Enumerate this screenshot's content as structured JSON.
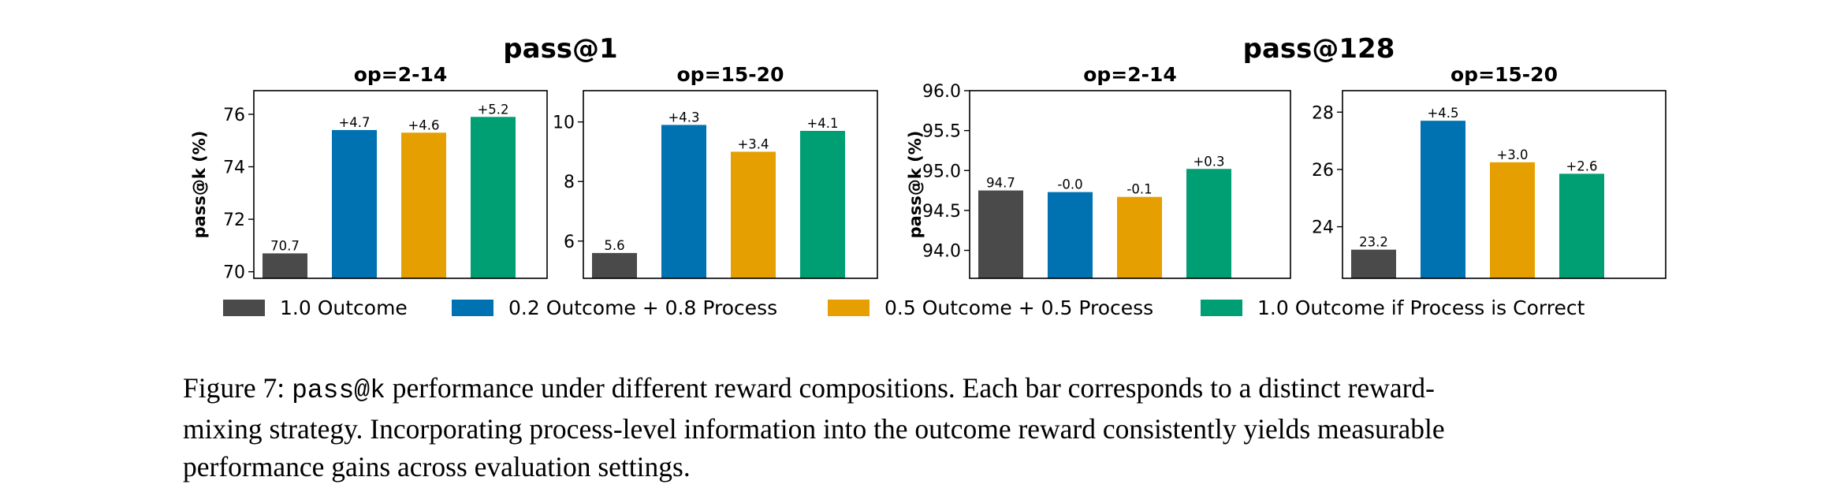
{
  "chart_data": {
    "type": "bar",
    "groups": [
      {
        "title": "pass@1",
        "panels": [
          0,
          1
        ]
      },
      {
        "title": "pass@128",
        "panels": [
          2,
          3
        ]
      }
    ],
    "categories": [
      "1.0 Outcome",
      "0.2 Outcome + 0.8 Process",
      "0.5 Outcome + 0.5 Process",
      "1.0 Outcome if Process is Correct"
    ],
    "colors": [
      "#4a4a4a",
      "#0072b2",
      "#e69f00",
      "#009e73"
    ],
    "panels": [
      {
        "title": "op=2-14",
        "group": "pass@1",
        "ylabel": "pass@k (%)",
        "ylim": [
          69.75,
          76.9
        ],
        "yticks": [
          70,
          72,
          74,
          76
        ],
        "ytick_labels": [
          "70",
          "72",
          "74",
          "76"
        ],
        "values": [
          70.7,
          75.4,
          75.3,
          75.9
        ],
        "labels": [
          "70.7",
          "+4.7",
          "+4.6",
          "+5.2"
        ]
      },
      {
        "title": "op=15-20",
        "group": "pass@1",
        "ylabel": "",
        "ylim": [
          4.75,
          11.05
        ],
        "yticks": [
          6,
          8,
          10
        ],
        "ytick_labels": [
          "6",
          "8",
          "10"
        ],
        "values": [
          5.6,
          9.9,
          9.0,
          9.7
        ],
        "labels": [
          "5.6",
          "+4.3",
          "+3.4",
          "+4.1"
        ]
      },
      {
        "title": "op=2-14",
        "group": "pass@128",
        "ylabel": "pass@k (%)",
        "ylim": [
          93.65,
          96.0
        ],
        "yticks": [
          94.0,
          94.5,
          95.0,
          95.5,
          96.0
        ],
        "ytick_labels": [
          "94.0",
          "94.5",
          "95.0",
          "95.5",
          "96.0"
        ],
        "values": [
          94.75,
          94.73,
          94.67,
          95.02
        ],
        "labels": [
          "94.7",
          "-0.0",
          "-0.1",
          "+0.3"
        ]
      },
      {
        "title": "op=15-20",
        "group": "pass@128",
        "ylabel": "",
        "ylim": [
          22.2,
          28.75
        ],
        "yticks": [
          24,
          26,
          28
        ],
        "ytick_labels": [
          "24",
          "26",
          "28"
        ],
        "values": [
          23.2,
          27.7,
          26.25,
          25.85
        ],
        "labels": [
          "23.2",
          "+4.5",
          "+3.0",
          "+2.6"
        ]
      }
    ]
  },
  "caption": {
    "prefix": "Figure 7: ",
    "code": "pass@k",
    "line1_rest": " performance under different reward compositions. Each bar corresponds to a distinct reward-",
    "line2": "mixing strategy. Incorporating process-level information into the outcome reward consistently yields measurable",
    "line3": "performance gains across evaluation settings."
  }
}
